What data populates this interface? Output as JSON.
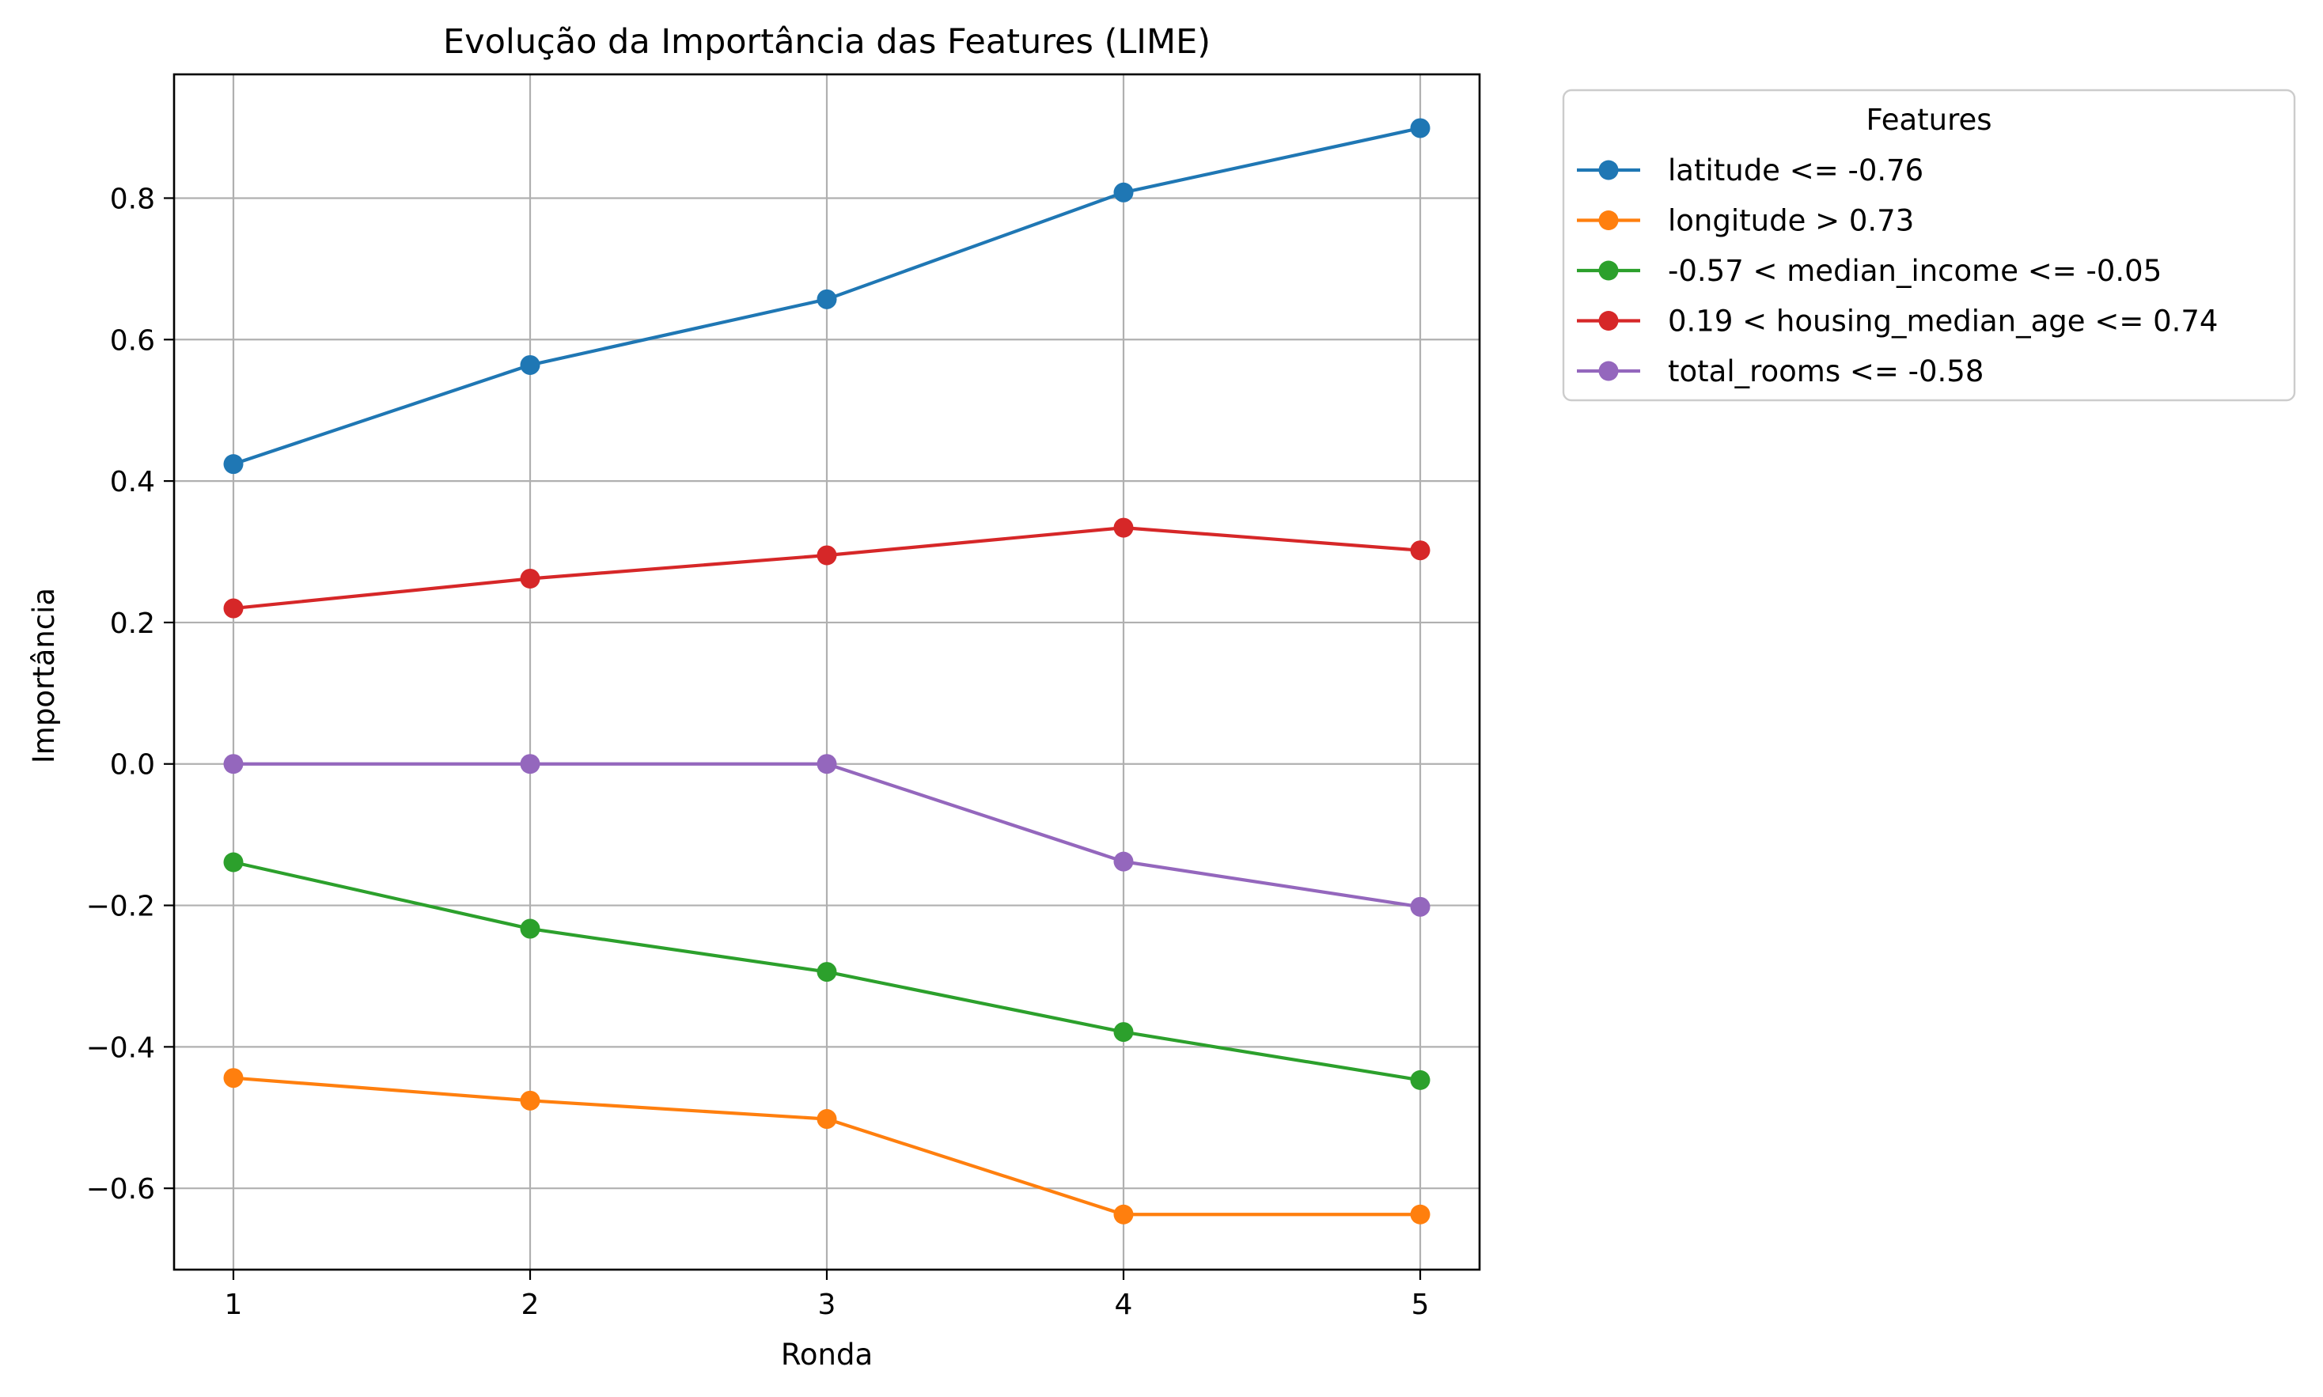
{
  "chart_data": {
    "type": "line",
    "title": "Evolução da Importância das Features (LIME)",
    "xlabel": "Ronda",
    "ylabel": "Importância",
    "x": [
      1,
      2,
      3,
      4,
      5
    ],
    "xlim": [
      0.8,
      5.2
    ],
    "ylim": [
      -0.715,
      0.975
    ],
    "xticks": [
      1,
      2,
      3,
      4,
      5
    ],
    "xtick_labels": [
      "1",
      "2",
      "3",
      "4",
      "5"
    ],
    "yticks": [
      -0.6,
      -0.4,
      -0.2,
      0.0,
      0.2,
      0.4,
      0.6,
      0.8
    ],
    "ytick_labels": [
      "−0.6",
      "−0.4",
      "−0.2",
      "0.0",
      "0.2",
      "0.4",
      "0.6",
      "0.8"
    ],
    "grid": true,
    "legend": {
      "title": "Features",
      "placement": "outside-upper-right"
    },
    "series": [
      {
        "name": "latitude <= -0.76",
        "color": "#1f77b4",
        "values": [
          0.424,
          0.564,
          0.657,
          0.808,
          0.899
        ]
      },
      {
        "name": "longitude > 0.73",
        "color": "#ff7f0e",
        "values": [
          -0.444,
          -0.476,
          -0.502,
          -0.637,
          -0.637
        ]
      },
      {
        "name": "-0.57 < median_income <= -0.05",
        "color": "#2ca02c",
        "values": [
          -0.139,
          -0.233,
          -0.294,
          -0.379,
          -0.447
        ]
      },
      {
        "name": "0.19 < housing_median_age <= 0.74",
        "color": "#d62728",
        "values": [
          0.22,
          0.262,
          0.295,
          0.334,
          0.302
        ]
      },
      {
        "name": "total_rooms <= -0.58",
        "color": "#9467bd",
        "values": [
          0.0,
          0.0,
          0.0,
          -0.138,
          -0.202
        ]
      }
    ]
  }
}
